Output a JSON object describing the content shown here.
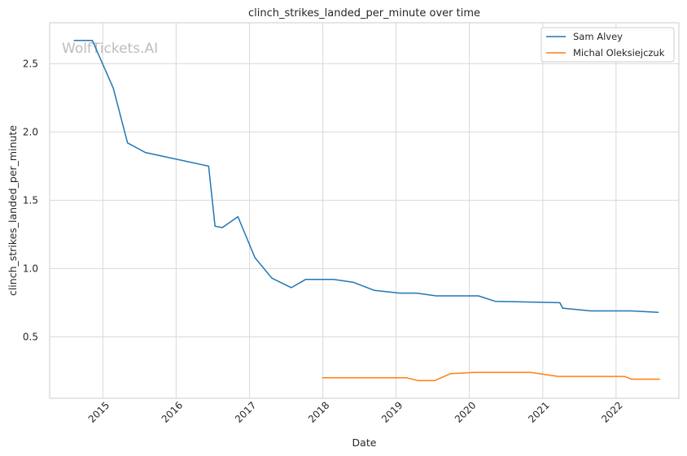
{
  "chart_data": {
    "type": "line",
    "title": "clinch_strikes_landed_per_minute over time",
    "xlabel": "Date",
    "ylabel": "clinch_strikes_landed_per_minute",
    "watermark": "WolfTickets.AI",
    "x_ticks": [
      "2015",
      "2016",
      "2017",
      "2018",
      "2019",
      "2020",
      "2021",
      "2022"
    ],
    "y_ticks": [
      "0.5",
      "1.0",
      "1.5",
      "2.0",
      "2.5"
    ],
    "xlim": [
      "2014-04-11",
      "2022-11-10"
    ],
    "ylim": [
      0.05,
      2.8
    ],
    "grid": true,
    "legend_position": "top-right",
    "series": [
      {
        "name": "Sam Alvey",
        "color": "#1f77b4",
        "points": [
          {
            "x": "2014-08-11",
            "y": 2.67
          },
          {
            "x": "2014-11-10",
            "y": 2.67
          },
          {
            "x": "2015-02-22",
            "y": 2.32
          },
          {
            "x": "2015-05-04",
            "y": 1.92
          },
          {
            "x": "2015-08-01",
            "y": 1.85
          },
          {
            "x": "2016-06-11",
            "y": 1.75
          },
          {
            "x": "2016-07-13",
            "y": 1.31
          },
          {
            "x": "2016-08-18",
            "y": 1.3
          },
          {
            "x": "2016-11-04",
            "y": 1.38
          },
          {
            "x": "2017-01-28",
            "y": 1.08
          },
          {
            "x": "2017-04-22",
            "y": 0.93
          },
          {
            "x": "2017-07-28",
            "y": 0.86
          },
          {
            "x": "2017-10-07",
            "y": 0.92
          },
          {
            "x": "2018-02-24",
            "y": 0.92
          },
          {
            "x": "2018-06-01",
            "y": 0.9
          },
          {
            "x": "2018-09-15",
            "y": 0.84
          },
          {
            "x": "2019-01-19",
            "y": 0.82
          },
          {
            "x": "2019-04-13",
            "y": 0.82
          },
          {
            "x": "2019-07-20",
            "y": 0.8
          },
          {
            "x": "2020-02-15",
            "y": 0.8
          },
          {
            "x": "2020-05-09",
            "y": 0.76
          },
          {
            "x": "2021-03-27",
            "y": 0.75
          },
          {
            "x": "2021-04-10",
            "y": 0.71
          },
          {
            "x": "2021-08-28",
            "y": 0.69
          },
          {
            "x": "2022-03-19",
            "y": 0.69
          },
          {
            "x": "2022-07-30",
            "y": 0.68
          }
        ]
      },
      {
        "name": "Michal Oleksiejczuk",
        "color": "#ff7f0e",
        "points": [
          {
            "x": "2017-12-30",
            "y": 0.2
          },
          {
            "x": "2019-02-23",
            "y": 0.2
          },
          {
            "x": "2019-04-20",
            "y": 0.18
          },
          {
            "x": "2019-07-13",
            "y": 0.18
          },
          {
            "x": "2019-09-28",
            "y": 0.23
          },
          {
            "x": "2020-02-01",
            "y": 0.24
          },
          {
            "x": "2020-10-31",
            "y": 0.24
          },
          {
            "x": "2021-03-20",
            "y": 0.21
          },
          {
            "x": "2021-09-04",
            "y": 0.21
          },
          {
            "x": "2021-10-30",
            "y": 0.21
          },
          {
            "x": "2022-02-12",
            "y": 0.21
          },
          {
            "x": "2022-03-19",
            "y": 0.19
          },
          {
            "x": "2022-08-05",
            "y": 0.19
          }
        ]
      }
    ]
  }
}
